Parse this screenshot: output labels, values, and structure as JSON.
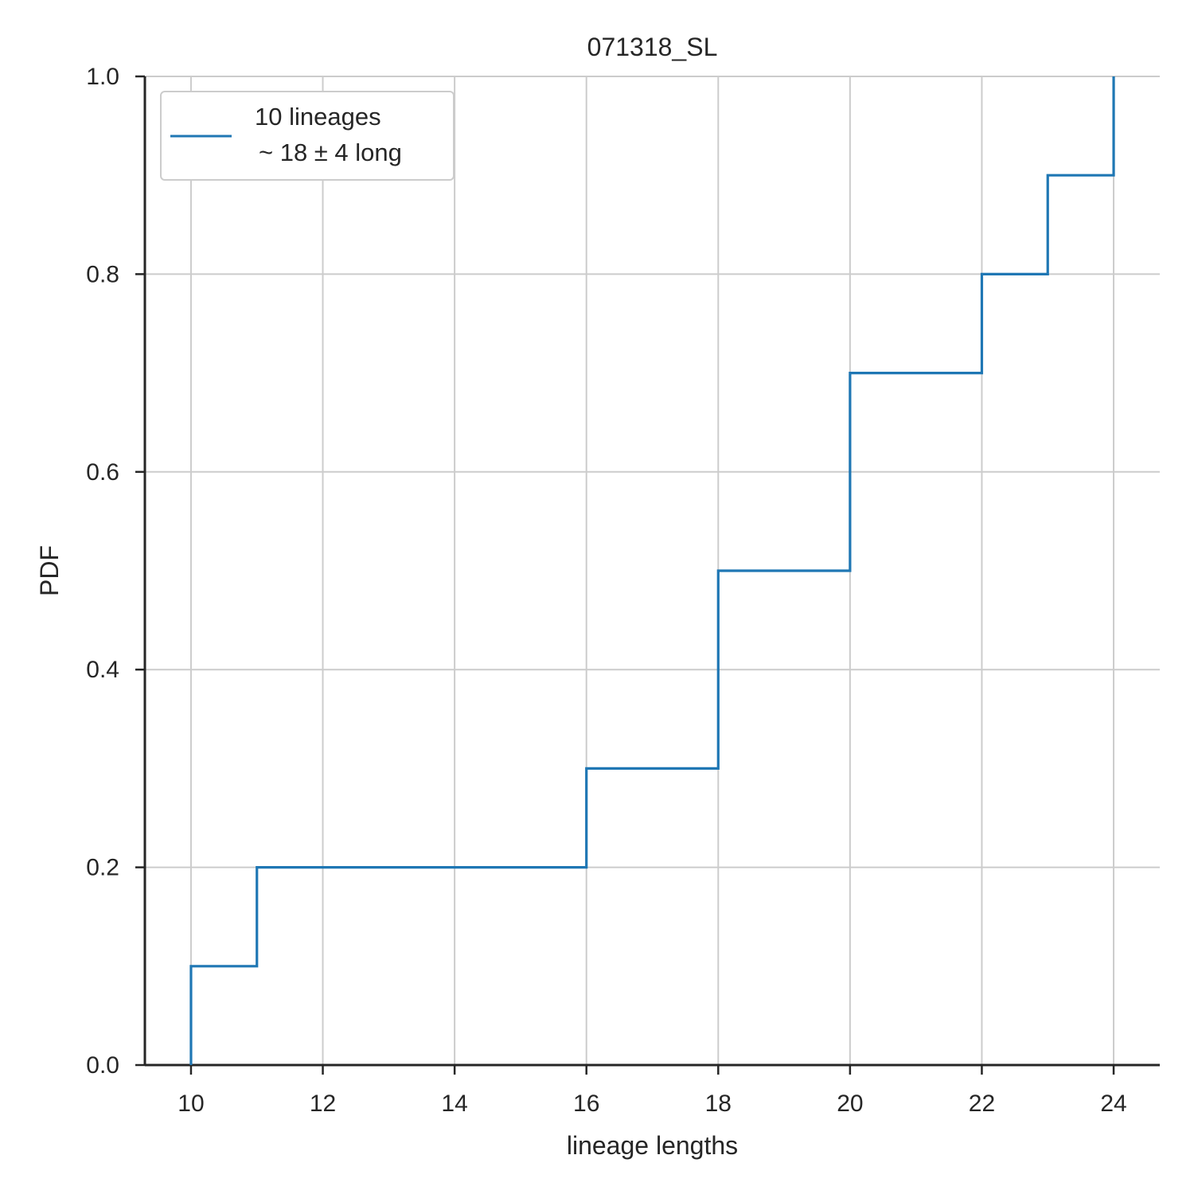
{
  "chart_data": {
    "type": "line",
    "style": "step-cdf",
    "title": "071318_SL",
    "xlabel": "lineage lengths",
    "ylabel": "PDF",
    "xlim": [
      9.3,
      24.7
    ],
    "ylim": [
      0.0,
      1.0
    ],
    "xticks": [
      10,
      12,
      14,
      16,
      18,
      20,
      22,
      24
    ],
    "xtick_labels": [
      "10",
      "12",
      "14",
      "16",
      "18",
      "20",
      "22",
      "24"
    ],
    "yticks": [
      0.0,
      0.2,
      0.4,
      0.6,
      0.8,
      1.0
    ],
    "ytick_labels": [
      "0.0",
      "0.2",
      "0.4",
      "0.6",
      "0.8",
      "1.0"
    ],
    "grid": true,
    "legend_position": "top-left",
    "series": [
      {
        "name_line1": "10 lineages",
        "name_line2": "~ 18 ± 4 long",
        "color": "#1f77b4",
        "x": [
          10,
          11,
          16,
          18,
          20,
          22,
          23,
          24
        ],
        "y": [
          0.1,
          0.2,
          0.3,
          0.5,
          0.7,
          0.8,
          0.9,
          1.0
        ]
      }
    ]
  }
}
